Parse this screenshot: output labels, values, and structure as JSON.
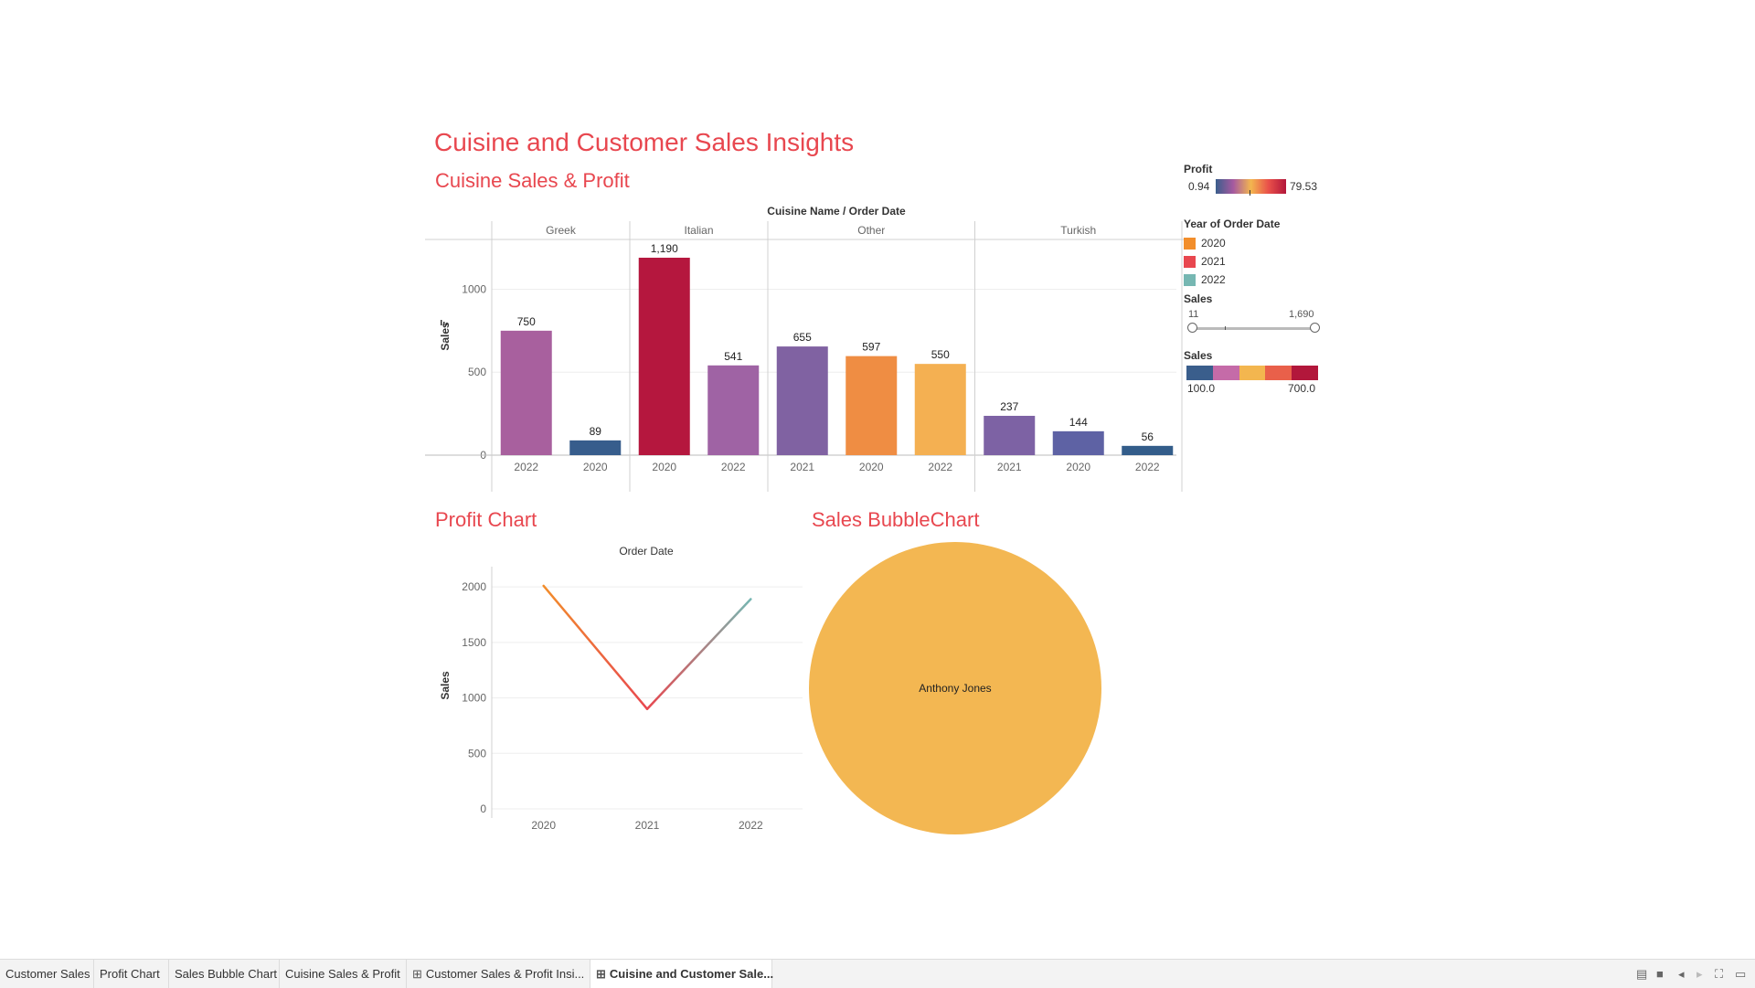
{
  "dashboard": {
    "title": "Cuisine and Customer Sales Insights"
  },
  "bar_section": {
    "title": "Cuisine Sales & Profit",
    "header": "Cuisine Name / Order Date",
    "y_axis_label": "Sales"
  },
  "profit_section": {
    "title": "Profit Chart",
    "header": "Order Date",
    "y_axis_label": "Sales"
  },
  "bubble_section": {
    "title": "Sales BubbleChart",
    "bubble_label": "Anthony Jones",
    "bubble_color": "#f3b752"
  },
  "legends": {
    "profit": {
      "title": "Profit",
      "min": "0.94",
      "max": "79.53"
    },
    "year": {
      "title": "Year of Order Date",
      "items": [
        {
          "label": "2020",
          "color": "#f28e2b"
        },
        {
          "label": "2021",
          "color": "#e8474f"
        },
        {
          "label": "2022",
          "color": "#76b7b2"
        }
      ]
    },
    "sales_range": {
      "title": "Sales",
      "min": "11",
      "max": "1,690"
    },
    "sales_color": {
      "title": "Sales",
      "min": "100.0",
      "max": "700.0",
      "colors": [
        "#3a5e8c",
        "#c56ba8",
        "#f3b64f",
        "#e9604a",
        "#b2173b"
      ]
    }
  },
  "chart_data": [
    {
      "type": "bar",
      "title": "Cuisine Sales & Profit",
      "xlabel": "Cuisine Name / Order Date",
      "ylabel": "Sales",
      "ylim": [
        0,
        1300
      ],
      "yticks": [
        0,
        500,
        1000
      ],
      "groups": [
        {
          "name": "Greek",
          "bars": [
            {
              "x": "2022",
              "value": 750,
              "label": "750",
              "color": "#a8609e"
            },
            {
              "x": "2020",
              "value": 89,
              "label": "89",
              "color": "#375d8c"
            }
          ]
        },
        {
          "name": "Italian",
          "bars": [
            {
              "x": "2020",
              "value": 1190,
              "label": "1,190",
              "color": "#b5173e"
            },
            {
              "x": "2022",
              "value": 541,
              "label": "541",
              "color": "#9f63a4"
            }
          ]
        },
        {
          "name": "Other",
          "bars": [
            {
              "x": "2021",
              "value": 655,
              "label": "655",
              "color": "#8062a2"
            },
            {
              "x": "2020",
              "value": 597,
              "label": "597",
              "color": "#ef8d43"
            },
            {
              "x": "2022",
              "value": 550,
              "label": "550",
              "color": "#f4b052"
            }
          ]
        },
        {
          "name": "Turkish",
          "bars": [
            {
              "x": "2021",
              "value": 237,
              "label": "237",
              "color": "#7d62a4"
            },
            {
              "x": "2020",
              "value": 144,
              "label": "144",
              "color": "#5e62a4"
            },
            {
              "x": "2022",
              "value": 56,
              "label": "56",
              "color": "#335d8a"
            }
          ]
        }
      ]
    },
    {
      "type": "line",
      "title": "Profit Chart",
      "xlabel": "Order Date",
      "ylabel": "Sales",
      "x": [
        "2020",
        "2021",
        "2022"
      ],
      "ylim": [
        0,
        2100
      ],
      "yticks": [
        0,
        500,
        1000,
        1500,
        2000
      ],
      "series": [
        {
          "values": [
            2010,
            900,
            1890
          ],
          "colors": [
            "#f28e2b",
            "#e8474f",
            "#76b7b2"
          ]
        }
      ]
    }
  ],
  "tabs": [
    {
      "label": "Customer Sales",
      "icon": ""
    },
    {
      "label": "Profit Chart",
      "icon": ""
    },
    {
      "label": "Sales Bubble Chart",
      "icon": ""
    },
    {
      "label": "Cuisine Sales & Profit",
      "icon": ""
    },
    {
      "label": "Customer Sales & Profit Insi...",
      "icon": "dashboard-icon"
    },
    {
      "label": "Cuisine and Customer Sale...",
      "icon": "dashboard-icon",
      "active": true
    }
  ]
}
